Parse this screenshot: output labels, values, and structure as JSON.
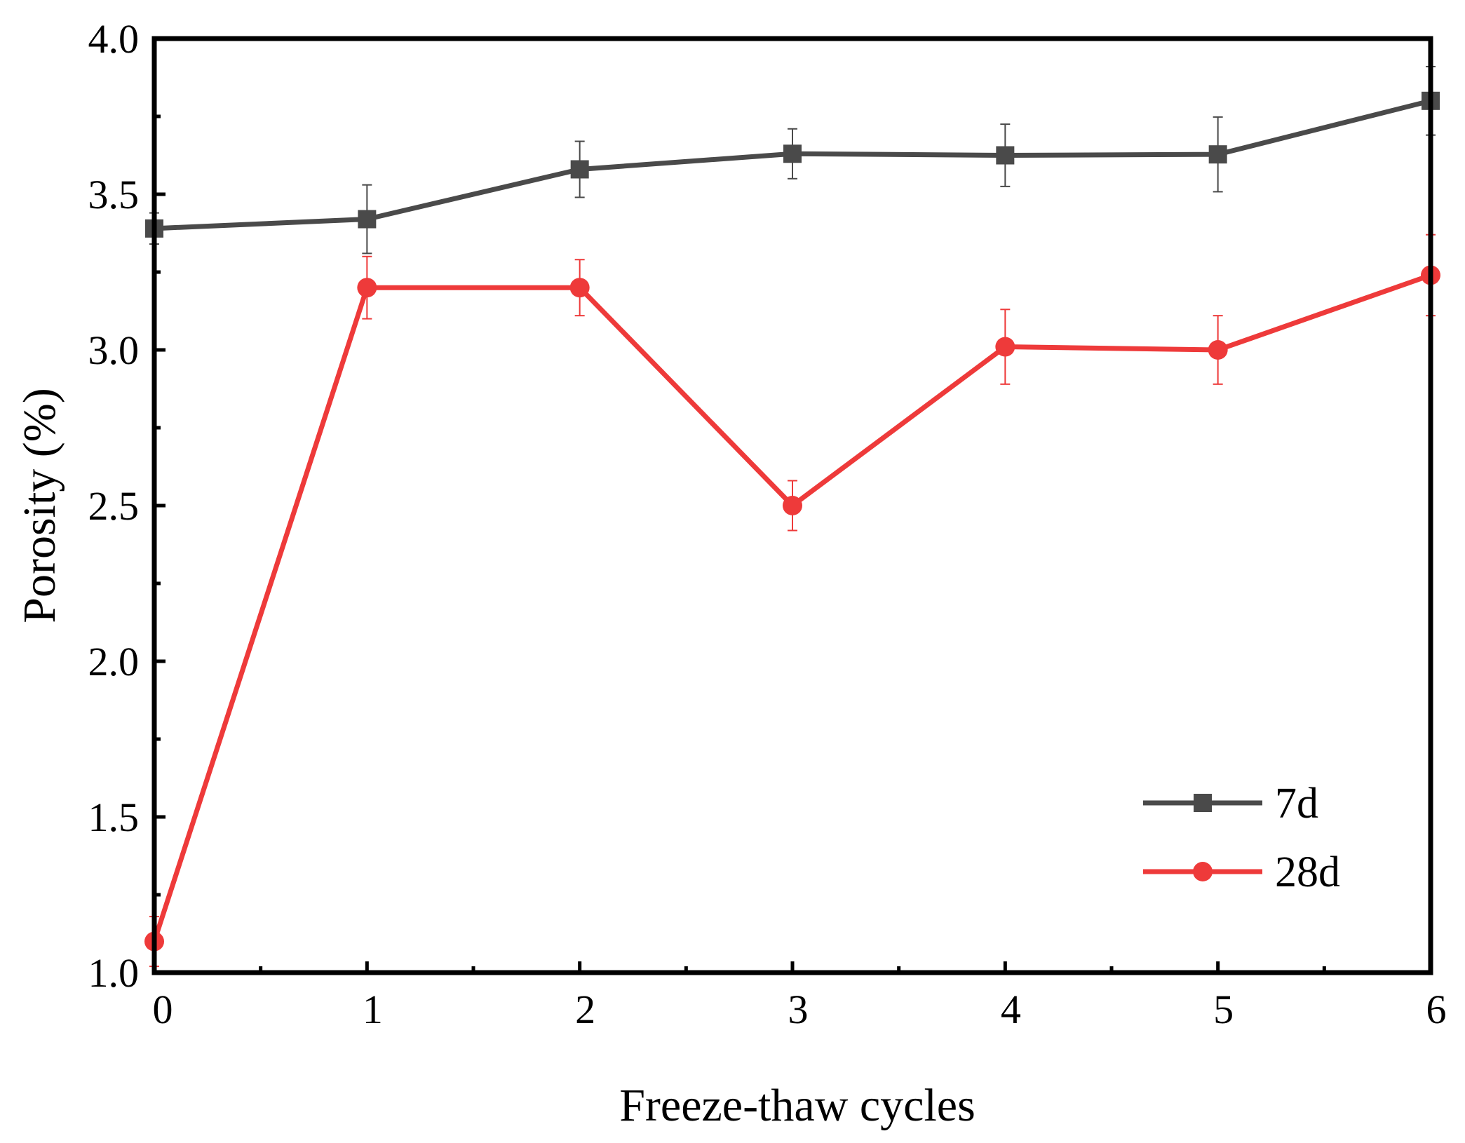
{
  "chart_data": {
    "type": "line",
    "title": "",
    "xlabel": "Freeze-thaw cycles",
    "ylabel": "Porosity (%)",
    "xlim": [
      0,
      6
    ],
    "ylim": [
      1.0,
      4.0
    ],
    "x": [
      0,
      1,
      2,
      3,
      4,
      5,
      6
    ],
    "x_tick_labels": [
      "0",
      "1",
      "2",
      "3",
      "4",
      "5",
      "6"
    ],
    "y_ticks": [
      1.0,
      1.5,
      2.0,
      2.5,
      3.0,
      3.5,
      4.0
    ],
    "y_tick_labels": [
      "1.0",
      "1.5",
      "2.0",
      "2.5",
      "3.0",
      "3.5",
      "4.0"
    ],
    "grid": false,
    "legend_position": "bottom-right",
    "series": [
      {
        "name": "7d",
        "marker": "square",
        "color": "#4a4a4a",
        "values": [
          3.39,
          3.42,
          3.58,
          3.63,
          3.625,
          3.628,
          3.8
        ],
        "errors": [
          0.05,
          0.11,
          0.09,
          0.08,
          0.1,
          0.12,
          0.11
        ]
      },
      {
        "name": "28d",
        "marker": "circle",
        "color": "#ee3a3a",
        "values": [
          1.1,
          3.2,
          3.2,
          2.5,
          3.01,
          3.0,
          3.24
        ],
        "errors": [
          0.08,
          0.1,
          0.09,
          0.08,
          0.12,
          0.11,
          0.13
        ]
      }
    ]
  }
}
